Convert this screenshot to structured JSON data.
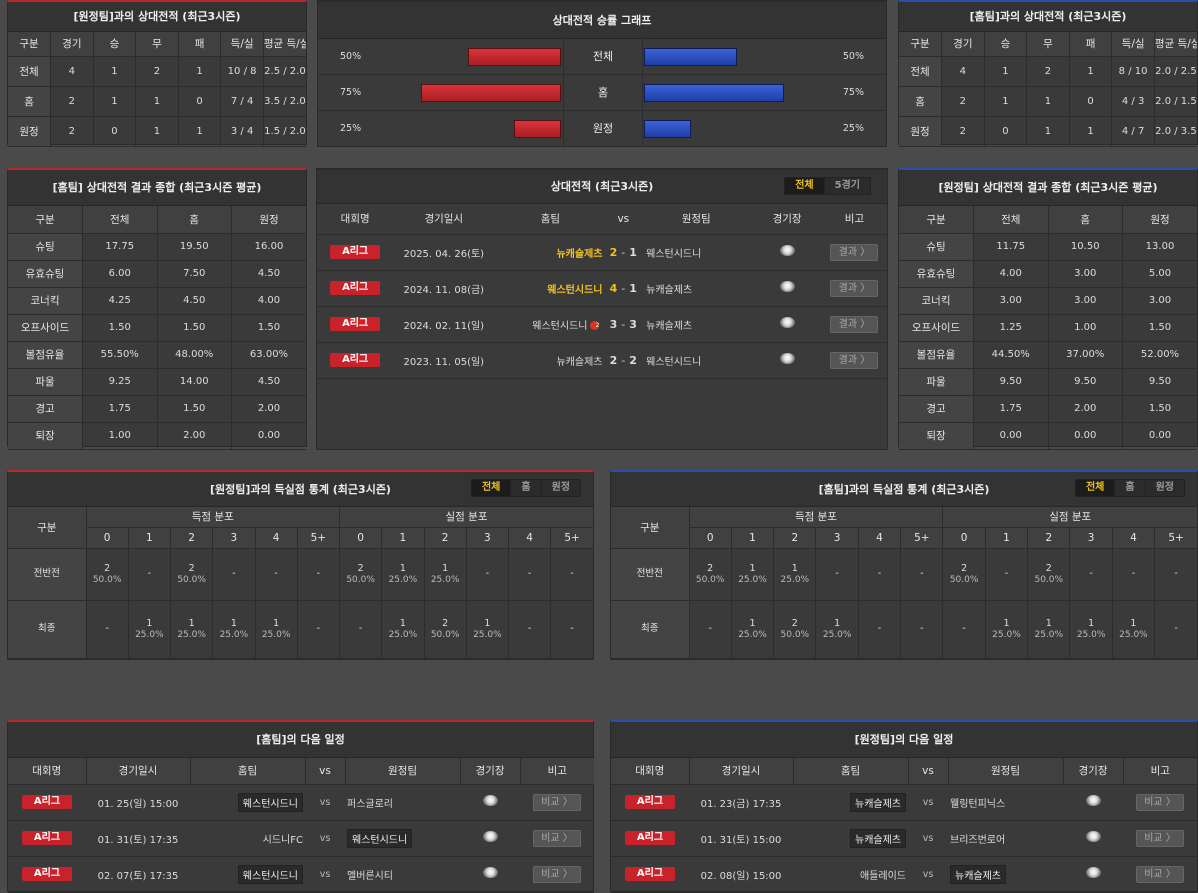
{
  "away_h2h": {
    "title": "[원정팀]과의 상대전적 (최근3시즌)",
    "headers": [
      "구분",
      "경기",
      "승",
      "무",
      "패",
      "득/실",
      "평균 득/실"
    ],
    "rows": [
      [
        "전체",
        "4",
        "1",
        "2",
        "1",
        "10 / 8",
        "2.5 / 2.0"
      ],
      [
        "홈",
        "2",
        "1",
        "1",
        "0",
        "7 / 4",
        "3.5 / 2.0"
      ],
      [
        "원정",
        "2",
        "0",
        "1",
        "1",
        "3 / 4",
        "1.5 / 2.0"
      ]
    ]
  },
  "win_graph": {
    "title": "상대전적 승률 그래프",
    "rows": [
      {
        "label": "전체",
        "left": "50%",
        "right": "50%",
        "left_val": 0.5,
        "right_val": 0.5
      },
      {
        "label": "홈",
        "left": "75%",
        "right": "75%",
        "left_val": 0.75,
        "right_val": 0.75
      },
      {
        "label": "원정",
        "left": "25%",
        "right": "25%",
        "left_val": 0.25,
        "right_val": 0.25
      }
    ],
    "colors": {
      "home": "#c8232b",
      "away": "#2a4fc0"
    }
  },
  "home_h2h": {
    "title": "[홈팀]과의 상대전적 (최근3시즌)",
    "headers": [
      "구분",
      "경기",
      "승",
      "무",
      "패",
      "득/실",
      "평균 득/실"
    ],
    "rows": [
      [
        "전체",
        "4",
        "1",
        "2",
        "1",
        "8 / 10",
        "2.0 / 2.5"
      ],
      [
        "홈",
        "2",
        "1",
        "1",
        "0",
        "4 / 3",
        "2.0 / 1.5"
      ],
      [
        "원정",
        "2",
        "0",
        "1",
        "1",
        "4 / 7",
        "2.0 / 3.5"
      ]
    ]
  },
  "home_summary": {
    "title": "[홈팀] 상대전적 결과 종합 (최근3시즌 평균)",
    "headers": [
      "구분",
      "전체",
      "홈",
      "원정"
    ],
    "rows": [
      [
        "슈팅",
        "17.75",
        "19.50",
        "16.00"
      ],
      [
        "유효슈팅",
        "6.00",
        "7.50",
        "4.50"
      ],
      [
        "코너킥",
        "4.25",
        "4.50",
        "4.00"
      ],
      [
        "오프사이드",
        "1.50",
        "1.50",
        "1.50"
      ],
      [
        "볼점유율",
        "55.50%",
        "48.00%",
        "63.00%"
      ],
      [
        "파울",
        "9.25",
        "14.00",
        "4.50"
      ],
      [
        "경고",
        "1.75",
        "1.50",
        "2.00"
      ],
      [
        "퇴장",
        "1.00",
        "2.00",
        "0.00"
      ]
    ]
  },
  "away_summary": {
    "title": "[원정팀] 상대전적 결과 종합 (최근3시즌 평균)",
    "headers": [
      "구분",
      "전체",
      "홈",
      "원정"
    ],
    "rows": [
      [
        "슈팅",
        "11.75",
        "10.50",
        "13.00"
      ],
      [
        "유효슈팅",
        "4.00",
        "3.00",
        "5.00"
      ],
      [
        "코너킥",
        "3.00",
        "3.00",
        "3.00"
      ],
      [
        "오프사이드",
        "1.25",
        "1.00",
        "1.50"
      ],
      [
        "볼점유율",
        "44.50%",
        "37.00%",
        "52.00%"
      ],
      [
        "파울",
        "9.50",
        "9.50",
        "9.50"
      ],
      [
        "경고",
        "1.75",
        "2.00",
        "1.50"
      ],
      [
        "퇴장",
        "0.00",
        "0.00",
        "0.00"
      ]
    ]
  },
  "h2h_matches": {
    "title": "상대전적 (최근3시즌)",
    "tabs": [
      "전체",
      "5경기"
    ],
    "headers": {
      "league": "대회명",
      "date": "경기일시",
      "home": "홈팀",
      "vs": "vs",
      "away": "원정팀",
      "venue": "경기장",
      "note": "비고"
    },
    "matches": [
      {
        "league": "A리그",
        "date": "2025. 04. 26(토)",
        "home": "뉴캐슬제츠",
        "hs": "2",
        "as": "1",
        "away": "웨스턴시드니",
        "btn": "결과 〉",
        "home_win": true,
        "red": false
      },
      {
        "league": "A리그",
        "date": "2024. 11. 08(금)",
        "home": "웨스턴시드니",
        "hs": "4",
        "as": "1",
        "away": "뉴캐슬제츠",
        "btn": "결과 〉",
        "home_win": true,
        "red": false
      },
      {
        "league": "A리그",
        "date": "2024. 02. 11(일)",
        "home": "웨스턴시드니",
        "hs": "3",
        "as": "3",
        "away": "뉴캐슬제츠",
        "btn": "결과 〉",
        "home_win": false,
        "red": true,
        "red_mark": "2"
      },
      {
        "league": "A리그",
        "date": "2023. 11. 05(일)",
        "home": "뉴캐슬제츠",
        "hs": "2",
        "as": "2",
        "away": "웨스턴시드니",
        "btn": "결과 〉",
        "home_win": false,
        "red": false
      }
    ]
  },
  "away_goals": {
    "title": "[원정팀]과의 득실점 통계 (최근3시즌)",
    "tabs": [
      "전체",
      "홈",
      "원정"
    ],
    "col_label": "구분",
    "scored_label": "득점 분포",
    "conceded_label": "실점 분포",
    "bins": [
      "0",
      "1",
      "2",
      "3",
      "4",
      "5+"
    ],
    "rows": [
      {
        "label": "전반전",
        "cells": [
          [
            "2",
            "50.0%"
          ],
          [
            "-",
            ""
          ],
          [
            "2",
            "50.0%"
          ],
          [
            "-",
            ""
          ],
          [
            "-",
            ""
          ],
          [
            "-",
            ""
          ],
          [
            "2",
            "50.0%"
          ],
          [
            "1",
            "25.0%"
          ],
          [
            "1",
            "25.0%"
          ],
          [
            "-",
            ""
          ],
          [
            "-",
            ""
          ],
          [
            "-",
            ""
          ]
        ]
      },
      {
        "label": "최종",
        "cells": [
          [
            "-",
            ""
          ],
          [
            "1",
            "25.0%"
          ],
          [
            "1",
            "25.0%"
          ],
          [
            "1",
            "25.0%"
          ],
          [
            "1",
            "25.0%"
          ],
          [
            "-",
            ""
          ],
          [
            "-",
            ""
          ],
          [
            "1",
            "25.0%"
          ],
          [
            "2",
            "50.0%"
          ],
          [
            "1",
            "25.0%"
          ],
          [
            "-",
            ""
          ],
          [
            "-",
            ""
          ]
        ]
      }
    ]
  },
  "home_goals": {
    "title": "[홈팀]과의 득실점 통계 (최근3시즌)",
    "tabs": [
      "전체",
      "홈",
      "원정"
    ],
    "col_label": "구분",
    "scored_label": "득점 분포",
    "conceded_label": "실점 분포",
    "bins": [
      "0",
      "1",
      "2",
      "3",
      "4",
      "5+"
    ],
    "rows": [
      {
        "label": "전반전",
        "cells": [
          [
            "2",
            "50.0%"
          ],
          [
            "1",
            "25.0%"
          ],
          [
            "1",
            "25.0%"
          ],
          [
            "-",
            ""
          ],
          [
            "-",
            ""
          ],
          [
            "-",
            ""
          ],
          [
            "2",
            "50.0%"
          ],
          [
            "-",
            ""
          ],
          [
            "2",
            "50.0%"
          ],
          [
            "-",
            ""
          ],
          [
            "-",
            ""
          ],
          [
            "-",
            ""
          ]
        ]
      },
      {
        "label": "최종",
        "cells": [
          [
            "-",
            ""
          ],
          [
            "1",
            "25.0%"
          ],
          [
            "2",
            "50.0%"
          ],
          [
            "1",
            "25.0%"
          ],
          [
            "-",
            ""
          ],
          [
            "-",
            ""
          ],
          [
            "-",
            ""
          ],
          [
            "1",
            "25.0%"
          ],
          [
            "1",
            "25.0%"
          ],
          [
            "1",
            "25.0%"
          ],
          [
            "1",
            "25.0%"
          ],
          [
            "-",
            ""
          ]
        ]
      }
    ]
  },
  "home_next": {
    "title": "[홈팀]의 다음 일정",
    "headers": {
      "league": "대회명",
      "date": "경기일시",
      "home": "홈팀",
      "vs": "vs",
      "away": "원정팀",
      "venue": "경기장",
      "note": "비고"
    },
    "matches": [
      {
        "league": "A리그",
        "date": "01. 25(일) 15:00",
        "home": "웨스턴시드니",
        "away": "퍼스글로리",
        "btn": "비교 〉",
        "boxed": "home"
      },
      {
        "league": "A리그",
        "date": "01. 31(토) 17:35",
        "home": "시드니FC",
        "away": "웨스턴시드니",
        "btn": "비교 〉",
        "boxed": "away"
      },
      {
        "league": "A리그",
        "date": "02. 07(토) 17:35",
        "home": "웨스턴시드니",
        "away": "멜버른시티",
        "btn": "비교 〉",
        "boxed": "home"
      }
    ]
  },
  "away_next": {
    "title": "[원정팀]의 다음 일정",
    "headers": {
      "league": "대회명",
      "date": "경기일시",
      "home": "홈팀",
      "vs": "vs",
      "away": "원정팀",
      "venue": "경기장",
      "note": "비고"
    },
    "matches": [
      {
        "league": "A리그",
        "date": "01. 23(금) 17:35",
        "home": "뉴캐슬제츠",
        "away": "웰링턴피닉스",
        "btn": "비교 〉",
        "boxed": "home"
      },
      {
        "league": "A리그",
        "date": "01. 31(토) 15:00",
        "home": "뉴캐슬제츠",
        "away": "브리즈번로어",
        "btn": "비교 〉",
        "boxed": "home"
      },
      {
        "league": "A리그",
        "date": "02. 08(일) 15:00",
        "home": "애들레이드",
        "away": "뉴캐슬제츠",
        "btn": "비교 〉",
        "boxed": "away"
      }
    ]
  }
}
